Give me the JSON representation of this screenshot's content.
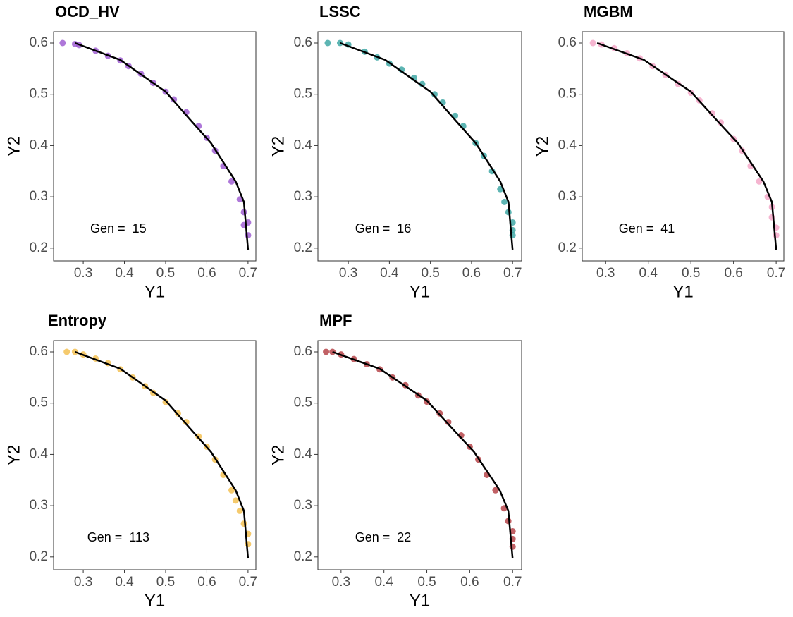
{
  "chart_data": [
    {
      "type": "scatter",
      "title": "OCD_HV",
      "x_label": "Y1",
      "y_label": "Y2",
      "annotation": "Gen =  15",
      "xlim": [
        0.228,
        0.719
      ],
      "ylim": [
        0.175,
        0.622
      ],
      "xticks": [
        0.3,
        0.4,
        0.5,
        0.6,
        0.7
      ],
      "yticks": [
        0.2,
        0.3,
        0.4,
        0.5,
        0.6
      ],
      "points": {
        "color": "#9a55cf",
        "x": [
          0.25,
          0.28,
          0.29,
          0.33,
          0.36,
          0.39,
          0.41,
          0.44,
          0.47,
          0.5,
          0.52,
          0.55,
          0.58,
          0.6,
          0.62,
          0.64,
          0.66,
          0.68,
          0.69,
          0.69,
          0.7,
          0.7
        ],
        "y": [
          0.6,
          0.598,
          0.596,
          0.585,
          0.575,
          0.566,
          0.555,
          0.54,
          0.522,
          0.505,
          0.49,
          0.465,
          0.438,
          0.415,
          0.39,
          0.36,
          0.33,
          0.295,
          0.27,
          0.245,
          0.225,
          0.25
        ]
      },
      "front": {
        "color": "#000000",
        "x": [
          0.28,
          0.39,
          0.5,
          0.56,
          0.61,
          0.67,
          0.69,
          0.7
        ],
        "y": [
          0.6,
          0.567,
          0.505,
          0.45,
          0.405,
          0.33,
          0.29,
          0.197
        ]
      }
    },
    {
      "type": "scatter",
      "title": "LSSC",
      "x_label": "Y1",
      "y_label": "Y2",
      "annotation": "Gen =  16",
      "xlim": [
        0.226,
        0.722
      ],
      "ylim": [
        0.175,
        0.622
      ],
      "xticks": [
        0.3,
        0.4,
        0.5,
        0.6,
        0.7
      ],
      "yticks": [
        0.2,
        0.3,
        0.4,
        0.5,
        0.6
      ],
      "points": {
        "color": "#35a3a0",
        "x": [
          0.25,
          0.28,
          0.3,
          0.34,
          0.37,
          0.4,
          0.43,
          0.46,
          0.48,
          0.51,
          0.53,
          0.56,
          0.58,
          0.61,
          0.63,
          0.65,
          0.67,
          0.68,
          0.69,
          0.7,
          0.7,
          0.7
        ],
        "y": [
          0.6,
          0.6,
          0.597,
          0.583,
          0.572,
          0.56,
          0.548,
          0.532,
          0.52,
          0.5,
          0.484,
          0.458,
          0.438,
          0.405,
          0.38,
          0.35,
          0.315,
          0.29,
          0.27,
          0.25,
          0.235,
          0.225
        ]
      },
      "front": {
        "color": "#000000",
        "x": [
          0.28,
          0.39,
          0.5,
          0.56,
          0.61,
          0.67,
          0.69,
          0.7
        ],
        "y": [
          0.6,
          0.567,
          0.505,
          0.45,
          0.405,
          0.33,
          0.29,
          0.197
        ]
      }
    },
    {
      "type": "scatter",
      "title": "MGBM",
      "x_label": "Y1",
      "y_label": "Y2",
      "annotation": "Gen =  41",
      "xlim": [
        0.245,
        0.718
      ],
      "ylim": [
        0.175,
        0.622
      ],
      "xticks": [
        0.3,
        0.4,
        0.5,
        0.6,
        0.7
      ],
      "yticks": [
        0.2,
        0.3,
        0.4,
        0.5,
        0.6
      ],
      "points": {
        "color": "#f2a3c4",
        "x": [
          0.27,
          0.29,
          0.32,
          0.35,
          0.38,
          0.41,
          0.44,
          0.47,
          0.5,
          0.52,
          0.55,
          0.57,
          0.6,
          0.62,
          0.64,
          0.66,
          0.68,
          0.69,
          0.69,
          0.7,
          0.7
        ],
        "y": [
          0.6,
          0.597,
          0.59,
          0.58,
          0.57,
          0.555,
          0.538,
          0.52,
          0.503,
          0.488,
          0.463,
          0.445,
          0.413,
          0.39,
          0.36,
          0.33,
          0.3,
          0.28,
          0.26,
          0.24,
          0.225
        ]
      },
      "front": {
        "color": "#000000",
        "x": [
          0.28,
          0.39,
          0.5,
          0.56,
          0.61,
          0.67,
          0.69,
          0.7
        ],
        "y": [
          0.6,
          0.567,
          0.505,
          0.45,
          0.405,
          0.33,
          0.29,
          0.197
        ]
      }
    },
    {
      "type": "scatter",
      "title": "Entropy",
      "x_label": "Y1",
      "y_label": "Y2",
      "annotation": "Gen =  113",
      "xlim": [
        0.228,
        0.719
      ],
      "ylim": [
        0.175,
        0.622
      ],
      "xticks": [
        0.3,
        0.4,
        0.5,
        0.6,
        0.7
      ],
      "yticks": [
        0.2,
        0.3,
        0.4,
        0.5,
        0.6
      ],
      "points": {
        "color": "#f2bd48",
        "x": [
          0.26,
          0.28,
          0.3,
          0.33,
          0.36,
          0.39,
          0.42,
          0.45,
          0.47,
          0.5,
          0.53,
          0.55,
          0.58,
          0.6,
          0.62,
          0.64,
          0.66,
          0.67,
          0.68,
          0.69,
          0.7,
          0.7
        ],
        "y": [
          0.6,
          0.6,
          0.595,
          0.587,
          0.578,
          0.566,
          0.55,
          0.533,
          0.52,
          0.502,
          0.48,
          0.463,
          0.435,
          0.415,
          0.39,
          0.36,
          0.33,
          0.31,
          0.29,
          0.265,
          0.245,
          0.225
        ]
      },
      "front": {
        "color": "#000000",
        "x": [
          0.28,
          0.39,
          0.5,
          0.56,
          0.61,
          0.67,
          0.69,
          0.7
        ],
        "y": [
          0.6,
          0.567,
          0.505,
          0.45,
          0.405,
          0.33,
          0.29,
          0.197
        ]
      }
    },
    {
      "type": "scatter",
      "title": "MPF",
      "x_label": "Y1",
      "y_label": "Y2",
      "annotation": "Gen =  22",
      "xlim": [
        0.246,
        0.721
      ],
      "ylim": [
        0.175,
        0.622
      ],
      "xticks": [
        0.3,
        0.4,
        0.5,
        0.6,
        0.7
      ],
      "yticks": [
        0.2,
        0.3,
        0.4,
        0.5,
        0.6
      ],
      "points": {
        "color": "#b23a3e",
        "x": [
          0.265,
          0.28,
          0.3,
          0.33,
          0.36,
          0.39,
          0.42,
          0.45,
          0.48,
          0.5,
          0.53,
          0.55,
          0.58,
          0.6,
          0.62,
          0.64,
          0.66,
          0.68,
          0.69,
          0.7,
          0.7,
          0.7
        ],
        "y": [
          0.6,
          0.6,
          0.595,
          0.586,
          0.576,
          0.566,
          0.55,
          0.535,
          0.515,
          0.503,
          0.48,
          0.463,
          0.437,
          0.415,
          0.39,
          0.36,
          0.33,
          0.295,
          0.27,
          0.25,
          0.235,
          0.22
        ]
      },
      "front": {
        "color": "#000000",
        "x": [
          0.28,
          0.39,
          0.5,
          0.56,
          0.61,
          0.67,
          0.69,
          0.7
        ],
        "y": [
          0.6,
          0.567,
          0.505,
          0.45,
          0.405,
          0.33,
          0.29,
          0.197
        ]
      }
    }
  ]
}
